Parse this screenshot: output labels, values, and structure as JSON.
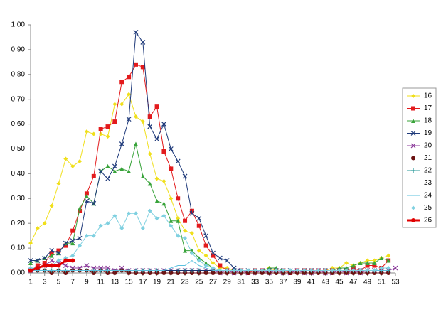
{
  "chart_data": {
    "type": "line",
    "x": [
      1,
      2,
      3,
      4,
      5,
      6,
      7,
      8,
      9,
      10,
      11,
      12,
      13,
      14,
      15,
      16,
      17,
      18,
      19,
      20,
      21,
      22,
      23,
      24,
      25,
      26,
      27,
      28,
      29,
      30,
      31,
      32,
      33,
      34,
      35,
      36,
      37,
      38,
      39,
      40,
      41,
      42,
      43,
      44,
      45,
      46,
      47,
      48,
      49,
      50,
      51,
      52,
      53
    ],
    "xlim": [
      1,
      53
    ],
    "xticks": [
      1,
      3,
      5,
      7,
      9,
      11,
      13,
      15,
      17,
      19,
      21,
      23,
      25,
      27,
      29,
      31,
      33,
      35,
      37,
      39,
      41,
      43,
      45,
      47,
      49,
      51,
      53
    ],
    "ylim": [
      0,
      1
    ],
    "yticks": [
      {
        "value": 0,
        "label": "0.00"
      },
      {
        "value": 0.1,
        "label": "0.10"
      },
      {
        "value": 0.2,
        "label": "0.20"
      },
      {
        "value": 0.3,
        "label": "0.30"
      },
      {
        "value": 0.4,
        "label": "0.40"
      },
      {
        "value": 0.5,
        "label": "0.50"
      },
      {
        "value": 0.6,
        "label": "0.60"
      },
      {
        "value": 0.7,
        "label": "0.70"
      },
      {
        "value": 0.8,
        "label": "0.80"
      },
      {
        "value": 0.9,
        "label": "0.90"
      },
      {
        "value": 1,
        "label": "1.00"
      }
    ],
    "legend": "right",
    "series": [
      {
        "name": "16",
        "color": "#f0df1a",
        "marker": "diamond",
        "line_width": 1,
        "values": [
          0.12,
          0.18,
          0.2,
          0.27,
          0.36,
          0.46,
          0.43,
          0.45,
          0.57,
          0.56,
          0.56,
          0.55,
          0.68,
          0.68,
          0.72,
          0.63,
          0.61,
          0.48,
          0.38,
          0.37,
          0.3,
          0.22,
          0.17,
          0.16,
          0.09,
          0.07,
          0.04,
          0.02,
          0.02,
          0.01,
          0.01,
          0.01,
          0.01,
          0.01,
          0.02,
          0.01,
          0.01,
          0.01,
          0.01,
          0.01,
          0.01,
          0.01,
          0.01,
          0.02,
          0.02,
          0.04,
          0.03,
          0.04,
          0.05,
          0.05,
          0.06,
          0.07,
          null
        ]
      },
      {
        "name": "17",
        "color": "#e31a1c",
        "marker": "square",
        "line_width": 1,
        "values": [
          0.01,
          0.03,
          0.04,
          0.08,
          0.09,
          0.11,
          0.17,
          0.25,
          0.32,
          0.39,
          0.58,
          0.59,
          0.61,
          0.77,
          0.79,
          0.84,
          0.83,
          0.63,
          0.67,
          0.49,
          0.42,
          0.3,
          0.21,
          0.25,
          0.19,
          0.11,
          0.07,
          0.03,
          0.01,
          0.01,
          0.01,
          0,
          0.01,
          0.01,
          0.01,
          0.01,
          0.01,
          0,
          0.01,
          0.01,
          0.01,
          0.01,
          0.01,
          0.01,
          0.01,
          0.01,
          0.02,
          0.01,
          0.03,
          0.03,
          0.02,
          0.05,
          null
        ]
      },
      {
        "name": "18",
        "color": "#38a33a",
        "marker": "triangle",
        "line_width": 1,
        "values": [
          0.04,
          0.05,
          0.06,
          0.07,
          0.08,
          0.12,
          0.12,
          0.26,
          0.31,
          0.28,
          0.41,
          0.43,
          0.41,
          0.42,
          0.41,
          0.52,
          0.39,
          0.36,
          0.29,
          0.28,
          0.21,
          0.21,
          0.09,
          0.09,
          0.06,
          0.04,
          0.02,
          0.01,
          0.01,
          0.01,
          0.01,
          0.01,
          0.01,
          0.01,
          0.02,
          0.02,
          0.01,
          0.01,
          0.01,
          0.01,
          0.01,
          0.01,
          0.01,
          0.01,
          0.02,
          0.02,
          0.03,
          0.04,
          0.04,
          0.04,
          0.06,
          0.05,
          null
        ]
      },
      {
        "name": "19",
        "color": "#1f3a7a",
        "marker": "x",
        "line_width": 1,
        "values": [
          0.05,
          0.05,
          0.06,
          0.09,
          0.08,
          0.12,
          0.13,
          0.14,
          0.29,
          0.28,
          0.41,
          0.38,
          0.43,
          0.52,
          0.62,
          0.97,
          0.93,
          0.59,
          0.54,
          0.6,
          0.5,
          0.45,
          0.39,
          0.24,
          0.22,
          0.15,
          0.08,
          0.06,
          0.05,
          0.02,
          0.01,
          0.01,
          0.01,
          0.01,
          0.01,
          0.01,
          0.01,
          0.01,
          0.01,
          0.01,
          0.01,
          0.01,
          0.01,
          0.01,
          0.01,
          0.01,
          0.01,
          0.01,
          0.01,
          0.01,
          0.01,
          0.01,
          null
        ]
      },
      {
        "name": "20",
        "color": "#8b3a9a",
        "marker": "x",
        "line_width": 1,
        "values": [
          0.01,
          0.02,
          0.03,
          0.05,
          0.04,
          0.03,
          0.02,
          0.02,
          0.03,
          0.02,
          0.02,
          0.02,
          0.01,
          0.02,
          0.01,
          0.01,
          0.01,
          0.01,
          0.01,
          0.01,
          0.01,
          0.01,
          0.01,
          0.01,
          0.01,
          0.01,
          0.01,
          0,
          0.01,
          0,
          0.01,
          0,
          0,
          0.01,
          0,
          0.01,
          0,
          0,
          0.01,
          0,
          0,
          0.01,
          0,
          0,
          0.01,
          0,
          0.01,
          0,
          0.01,
          0.01,
          0.01,
          0.01,
          0.02
        ]
      },
      {
        "name": "21",
        "color": "#6b1212",
        "marker": "circle",
        "line_width": 1,
        "values": [
          0.01,
          0.01,
          0.01,
          0,
          0.01,
          0,
          0.01,
          0.01,
          0.01,
          0,
          0.01,
          0,
          0,
          0.01,
          0,
          0,
          0,
          0,
          0,
          0,
          0,
          0,
          0,
          0,
          0,
          0,
          0,
          0,
          0,
          0,
          0,
          0,
          0,
          0,
          0,
          0,
          0,
          0,
          0,
          0,
          0,
          0,
          0,
          0,
          0,
          0,
          0,
          0,
          0,
          0,
          0,
          0,
          null
        ]
      },
      {
        "name": "22",
        "color": "#2a9a9a",
        "marker": "plus",
        "line_width": 1,
        "values": [
          0.01,
          0.01,
          0.01,
          0.01,
          0.01,
          0.01,
          0.01,
          0.01,
          0.01,
          0.01,
          0.01,
          0.01,
          0.01,
          0.01,
          0.01,
          0.01,
          0.01,
          0.01,
          0.01,
          0.01,
          0.01,
          0.01,
          0.01,
          0.01,
          0.01,
          0.01,
          0.01,
          0.01,
          0.01,
          0.01,
          0.01,
          0.01,
          0.01,
          0.01,
          0.01,
          0.01,
          0.01,
          0.01,
          0.01,
          0.01,
          0.01,
          0.01,
          0.01,
          0.01,
          0.01,
          0.01,
          0.01,
          0.01,
          0.01,
          0.01,
          0.01,
          0.01,
          null
        ]
      },
      {
        "name": "23",
        "color": "#1a3570",
        "marker": "none",
        "line_width": 1,
        "values": [
          0.01,
          0.01,
          0.01,
          0.01,
          0.01,
          0.01,
          0.01,
          0.01,
          0.01,
          0.01,
          0.01,
          0.01,
          0.01,
          0.01,
          0.01,
          0.01,
          0.01,
          0.01,
          0.01,
          0.01,
          0.01,
          0.01,
          0.01,
          0.01,
          0.01,
          0.01,
          0.01,
          0.01,
          0.01,
          0.01,
          0.01,
          0.01,
          0.01,
          0.01,
          0.01,
          0.01,
          0.01,
          0.01,
          0.01,
          0.01,
          0.01,
          0.01,
          0.01,
          0.01,
          0.01,
          0.01,
          0.01,
          0.01,
          0.01,
          0.01,
          0.01,
          0.01,
          null
        ]
      },
      {
        "name": "24",
        "color": "#5bc0de",
        "marker": "none",
        "line_width": 1,
        "values": [
          0.01,
          0.01,
          0.01,
          0.01,
          0.01,
          0.01,
          0.01,
          0.01,
          0.01,
          0.01,
          0.01,
          0.01,
          0.01,
          0.01,
          0.01,
          0.01,
          0.01,
          0.01,
          0.01,
          0.01,
          0.02,
          0.03,
          0.03,
          0.05,
          0.03,
          0.02,
          0.01,
          0.01,
          0.01,
          0.01,
          0.01,
          0.01,
          0.01,
          0.01,
          0.01,
          0.01,
          0.01,
          0.01,
          0.01,
          0.01,
          0.01,
          0.01,
          0.01,
          0.01,
          0.01,
          0.01,
          0.01,
          0.01,
          0.01,
          0.01,
          0.01,
          0.01,
          null
        ]
      },
      {
        "name": "25",
        "color": "#7fd0e0",
        "marker": "diamond",
        "line_width": 1,
        "values": [
          0.02,
          0.02,
          0.03,
          0.03,
          0.05,
          0.06,
          0.07,
          0.11,
          0.15,
          0.15,
          0.19,
          0.2,
          0.23,
          0.18,
          0.24,
          0.24,
          0.18,
          0.25,
          0.22,
          0.23,
          0.19,
          0.15,
          0.14,
          0.08,
          0.05,
          0.03,
          0.02,
          0.01,
          0.01,
          0.01,
          0.01,
          0.01,
          0.01,
          0.01,
          0.01,
          0.01,
          0.01,
          0.01,
          0.01,
          0.01,
          0.01,
          0.01,
          0.01,
          0.01,
          0.01,
          0.01,
          0.01,
          0.01,
          0.01,
          0.01,
          0.02,
          0.02,
          null
        ]
      },
      {
        "name": "26",
        "color": "#e00000",
        "marker": "circle",
        "line_width": 3,
        "values": [
          0.01,
          0.02,
          0.03,
          0.03,
          0.03,
          0.05,
          0.05,
          null,
          null,
          null,
          null,
          null,
          null,
          null,
          null,
          null,
          null,
          null,
          null,
          null,
          null,
          null,
          null,
          null,
          null,
          null,
          null,
          null,
          null,
          null,
          null,
          null,
          null,
          null,
          null,
          null,
          null,
          null,
          null,
          null,
          null,
          null,
          null,
          null,
          null,
          null,
          null,
          null,
          null,
          null,
          null,
          null,
          null
        ]
      }
    ]
  }
}
